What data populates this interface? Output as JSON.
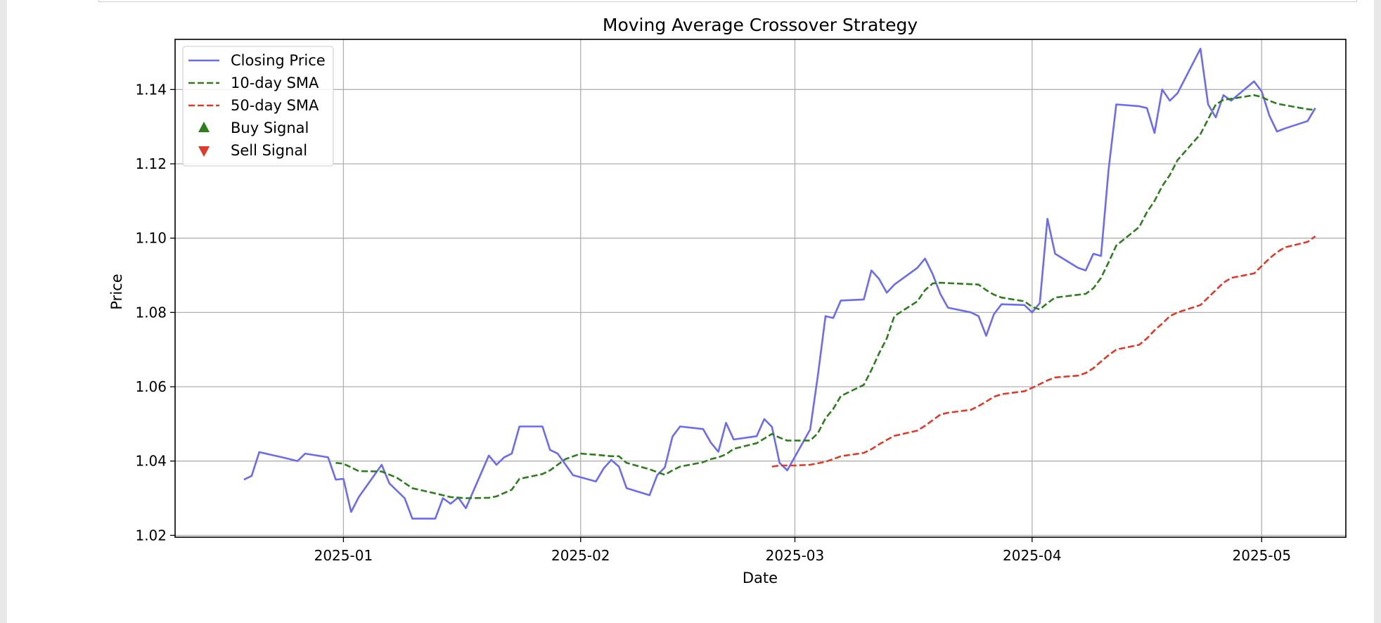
{
  "chart_data": {
    "type": "line",
    "title": "Moving Average Crossover Strategy",
    "xlabel": "Date",
    "ylabel": "Price",
    "grid": true,
    "legend_position": "top-left",
    "xlim": [
      "2024-12-10",
      "2025-05-12"
    ],
    "ylim": [
      1.0195,
      1.1535
    ],
    "x_ticks": [
      "2025-01-01",
      "2025-02-01",
      "2025-03-01",
      "2025-04-01",
      "2025-05-01"
    ],
    "x_tick_labels": [
      "2025-01",
      "2025-02",
      "2025-03",
      "2025-04",
      "2025-05"
    ],
    "y_ticks": [
      1.02,
      1.04,
      1.06,
      1.08,
      1.1,
      1.12,
      1.14
    ],
    "y_tick_labels": [
      "1.02",
      "1.04",
      "1.06",
      "1.08",
      "1.10",
      "1.12",
      "1.14"
    ],
    "legend": [
      {
        "label": "Closing Price",
        "kind": "line",
        "color": "#6b6bf5",
        "dash": "solid"
      },
      {
        "label": "10-day SMA",
        "kind": "line",
        "color": "#2e7d1e",
        "dash": "dashed"
      },
      {
        "label": "50-day SMA",
        "kind": "line",
        "color": "#e03a2a",
        "dash": "dashed"
      },
      {
        "label": "Buy Signal",
        "kind": "marker-up",
        "color": "#2e7d1e"
      },
      {
        "label": "Sell Signal",
        "kind": "marker-down",
        "color": "#e03a2a"
      }
    ],
    "series": [
      {
        "name": "Closing Price",
        "color": "#6b6bf5",
        "dash": "solid",
        "points": [
          [
            "2024-12-19",
            1.035
          ],
          [
            "2024-12-20",
            1.036
          ],
          [
            "2024-12-21",
            1.0424
          ],
          [
            "2024-12-24",
            1.041
          ],
          [
            "2024-12-25",
            1.0405
          ],
          [
            "2024-12-26",
            1.04
          ],
          [
            "2024-12-27",
            1.042
          ],
          [
            "2024-12-30",
            1.041
          ],
          [
            "2024-12-31",
            1.035
          ],
          [
            "2025-01-01",
            1.0352
          ],
          [
            "2025-01-02",
            1.0263
          ],
          [
            "2025-01-03",
            1.0303
          ],
          [
            "2025-01-06",
            1.039
          ],
          [
            "2025-01-07",
            1.034
          ],
          [
            "2025-01-09",
            1.03
          ],
          [
            "2025-01-10",
            1.0245
          ],
          [
            "2025-01-13",
            1.0245
          ],
          [
            "2025-01-14",
            1.03
          ],
          [
            "2025-01-15",
            1.0285
          ],
          [
            "2025-01-16",
            1.0302
          ],
          [
            "2025-01-17",
            1.0273
          ],
          [
            "2025-01-20",
            1.0415
          ],
          [
            "2025-01-21",
            1.039
          ],
          [
            "2025-01-22",
            1.041
          ],
          [
            "2025-01-23",
            1.042
          ],
          [
            "2025-01-24",
            1.0493
          ],
          [
            "2025-01-27",
            1.0493
          ],
          [
            "2025-01-28",
            1.043
          ],
          [
            "2025-01-29",
            1.042
          ],
          [
            "2025-01-31",
            1.0362
          ],
          [
            "2025-02-03",
            1.0345
          ],
          [
            "2025-02-04",
            1.038
          ],
          [
            "2025-02-05",
            1.0403
          ],
          [
            "2025-02-06",
            1.0385
          ],
          [
            "2025-02-07",
            1.0327
          ],
          [
            "2025-02-10",
            1.0308
          ],
          [
            "2025-02-11",
            1.0362
          ],
          [
            "2025-02-12",
            1.0383
          ],
          [
            "2025-02-13",
            1.0466
          ],
          [
            "2025-02-14",
            1.0493
          ],
          [
            "2025-02-17",
            1.0486
          ],
          [
            "2025-02-18",
            1.045
          ],
          [
            "2025-02-19",
            1.0425
          ],
          [
            "2025-02-20",
            1.0503
          ],
          [
            "2025-02-21",
            1.0458
          ],
          [
            "2025-02-24",
            1.0467
          ],
          [
            "2025-02-25",
            1.0513
          ],
          [
            "2025-02-26",
            1.0492
          ],
          [
            "2025-02-27",
            1.0395
          ],
          [
            "2025-02-28",
            1.0375
          ],
          [
            "2025-03-03",
            1.0485
          ],
          [
            "2025-03-04",
            1.063
          ],
          [
            "2025-03-05",
            1.079
          ],
          [
            "2025-03-06",
            1.0785
          ],
          [
            "2025-03-07",
            1.0832
          ],
          [
            "2025-03-10",
            1.0835
          ],
          [
            "2025-03-11",
            1.0913
          ],
          [
            "2025-03-12",
            1.089
          ],
          [
            "2025-03-13",
            1.0853
          ],
          [
            "2025-03-14",
            1.0875
          ],
          [
            "2025-03-17",
            1.092
          ],
          [
            "2025-03-18",
            1.0945
          ],
          [
            "2025-03-19",
            1.0903
          ],
          [
            "2025-03-20",
            1.085
          ],
          [
            "2025-03-21",
            1.0813
          ],
          [
            "2025-03-24",
            1.08
          ],
          [
            "2025-03-25",
            1.079
          ],
          [
            "2025-03-26",
            1.0737
          ],
          [
            "2025-03-27",
            1.0795
          ],
          [
            "2025-03-28",
            1.0822
          ],
          [
            "2025-03-31",
            1.082
          ],
          [
            "2025-04-01",
            1.08
          ],
          [
            "2025-04-02",
            1.0825
          ],
          [
            "2025-04-03",
            1.1052
          ],
          [
            "2025-04-04",
            1.0958
          ],
          [
            "2025-04-07",
            1.092
          ],
          [
            "2025-04-08",
            1.0913
          ],
          [
            "2025-04-09",
            1.0958
          ],
          [
            "2025-04-10",
            1.0952
          ],
          [
            "2025-04-11",
            1.1185
          ],
          [
            "2025-04-12",
            1.136
          ],
          [
            "2025-04-15",
            1.1355
          ],
          [
            "2025-04-16",
            1.135
          ],
          [
            "2025-04-17",
            1.1283
          ],
          [
            "2025-04-18",
            1.14
          ],
          [
            "2025-04-19",
            1.137
          ],
          [
            "2025-04-20",
            1.139
          ],
          [
            "2025-04-23",
            1.151
          ],
          [
            "2025-04-24",
            1.136
          ],
          [
            "2025-04-25",
            1.1325
          ],
          [
            "2025-04-26",
            1.1385
          ],
          [
            "2025-04-27",
            1.137
          ],
          [
            "2025-04-30",
            1.1422
          ],
          [
            "2025-05-01",
            1.1395
          ],
          [
            "2025-05-02",
            1.133
          ],
          [
            "2025-05-03",
            1.1287
          ],
          [
            "2025-05-04",
            1.1295
          ],
          [
            "2025-05-07",
            1.1315
          ],
          [
            "2025-05-08",
            1.135
          ]
        ]
      },
      {
        "name": "10-day SMA",
        "color": "#2e7d1e",
        "dash": "dashed",
        "points": [
          [
            "2024-12-31",
            1.0395
          ],
          [
            "2025-01-01",
            1.0393
          ],
          [
            "2025-01-03",
            1.0373
          ],
          [
            "2025-01-06",
            1.0372
          ],
          [
            "2025-01-08",
            1.0355
          ],
          [
            "2025-01-10",
            1.0327
          ],
          [
            "2025-01-13",
            1.0313
          ],
          [
            "2025-01-15",
            1.0303
          ],
          [
            "2025-01-17",
            1.03
          ],
          [
            "2025-01-20",
            1.0301
          ],
          [
            "2025-01-21",
            1.0305
          ],
          [
            "2025-01-23",
            1.0323
          ],
          [
            "2025-01-24",
            1.0352
          ],
          [
            "2025-01-27",
            1.0365
          ],
          [
            "2025-01-28",
            1.0375
          ],
          [
            "2025-01-30",
            1.0405
          ],
          [
            "2025-02-01",
            1.042
          ],
          [
            "2025-02-03",
            1.0417
          ],
          [
            "2025-02-05",
            1.0413
          ],
          [
            "2025-02-06",
            1.0413
          ],
          [
            "2025-02-07",
            1.0395
          ],
          [
            "2025-02-10",
            1.0378
          ],
          [
            "2025-02-11",
            1.037
          ],
          [
            "2025-02-12",
            1.0363
          ],
          [
            "2025-02-13",
            1.0375
          ],
          [
            "2025-02-14",
            1.0385
          ],
          [
            "2025-02-17",
            1.0397
          ],
          [
            "2025-02-18",
            1.0405
          ],
          [
            "2025-02-19",
            1.041
          ],
          [
            "2025-02-20",
            1.0418
          ],
          [
            "2025-02-21",
            1.0433
          ],
          [
            "2025-02-24",
            1.0448
          ],
          [
            "2025-02-26",
            1.0473
          ],
          [
            "2025-02-27",
            1.0463
          ],
          [
            "2025-02-28",
            1.0455
          ],
          [
            "2025-03-01",
            1.0455
          ],
          [
            "2025-03-03",
            1.0455
          ],
          [
            "2025-03-04",
            1.0475
          ],
          [
            "2025-03-05",
            1.0515
          ],
          [
            "2025-03-06",
            1.054
          ],
          [
            "2025-03-07",
            1.0575
          ],
          [
            "2025-03-10",
            1.0605
          ],
          [
            "2025-03-11",
            1.0645
          ],
          [
            "2025-03-12",
            1.069
          ],
          [
            "2025-03-13",
            1.073
          ],
          [
            "2025-03-14",
            1.079
          ],
          [
            "2025-03-17",
            1.083
          ],
          [
            "2025-03-18",
            1.086
          ],
          [
            "2025-03-19",
            1.0878
          ],
          [
            "2025-03-20",
            1.088
          ],
          [
            "2025-03-25",
            1.0875
          ],
          [
            "2025-03-26",
            1.086
          ],
          [
            "2025-03-27",
            1.0848
          ],
          [
            "2025-03-28",
            1.084
          ],
          [
            "2025-03-31",
            1.083
          ],
          [
            "2025-04-01",
            1.0815
          ],
          [
            "2025-04-02",
            1.0808
          ],
          [
            "2025-04-03",
            1.0825
          ],
          [
            "2025-04-04",
            1.084
          ],
          [
            "2025-04-08",
            1.085
          ],
          [
            "2025-04-09",
            1.0865
          ],
          [
            "2025-04-10",
            1.0893
          ],
          [
            "2025-04-11",
            1.0935
          ],
          [
            "2025-04-12",
            1.098
          ],
          [
            "2025-04-15",
            1.103
          ],
          [
            "2025-04-16",
            1.107
          ],
          [
            "2025-04-17",
            1.11
          ],
          [
            "2025-04-18",
            1.114
          ],
          [
            "2025-04-19",
            1.117
          ],
          [
            "2025-04-20",
            1.121
          ],
          [
            "2025-04-23",
            1.128
          ],
          [
            "2025-04-24",
            1.132
          ],
          [
            "2025-04-25",
            1.136
          ],
          [
            "2025-04-26",
            1.1372
          ],
          [
            "2025-04-27",
            1.1375
          ],
          [
            "2025-04-30",
            1.1385
          ],
          [
            "2025-05-01",
            1.138
          ],
          [
            "2025-05-02",
            1.137
          ],
          [
            "2025-05-03",
            1.1362
          ],
          [
            "2025-05-04",
            1.1358
          ],
          [
            "2025-05-07",
            1.1347
          ],
          [
            "2025-05-08",
            1.1345
          ]
        ]
      },
      {
        "name": "50-day SMA",
        "color": "#e03a2a",
        "dash": "dashed",
        "points": [
          [
            "2025-02-26",
            1.0385
          ],
          [
            "2025-02-27",
            1.0388
          ],
          [
            "2025-02-28",
            1.0388
          ],
          [
            "2025-03-01",
            1.0388
          ],
          [
            "2025-03-03",
            1.039
          ],
          [
            "2025-03-05",
            1.0398
          ],
          [
            "2025-03-06",
            1.0405
          ],
          [
            "2025-03-07",
            1.0413
          ],
          [
            "2025-03-10",
            1.0422
          ],
          [
            "2025-03-11",
            1.0432
          ],
          [
            "2025-03-12",
            1.0445
          ],
          [
            "2025-03-13",
            1.0457
          ],
          [
            "2025-03-14",
            1.0468
          ],
          [
            "2025-03-17",
            1.0482
          ],
          [
            "2025-03-18",
            1.0495
          ],
          [
            "2025-03-19",
            1.051
          ],
          [
            "2025-03-20",
            1.0525
          ],
          [
            "2025-03-21",
            1.053
          ],
          [
            "2025-03-24",
            1.0538
          ],
          [
            "2025-03-25",
            1.0548
          ],
          [
            "2025-03-26",
            1.056
          ],
          [
            "2025-03-27",
            1.0573
          ],
          [
            "2025-03-28",
            1.058
          ],
          [
            "2025-03-31",
            1.0588
          ],
          [
            "2025-04-01",
            1.0597
          ],
          [
            "2025-04-02",
            1.0607
          ],
          [
            "2025-04-03",
            1.0617
          ],
          [
            "2025-04-04",
            1.0625
          ],
          [
            "2025-04-07",
            1.063
          ],
          [
            "2025-04-08",
            1.0637
          ],
          [
            "2025-04-09",
            1.065
          ],
          [
            "2025-04-10",
            1.0668
          ],
          [
            "2025-04-11",
            1.0685
          ],
          [
            "2025-04-12",
            1.07
          ],
          [
            "2025-04-15",
            1.0713
          ],
          [
            "2025-04-16",
            1.073
          ],
          [
            "2025-04-17",
            1.0752
          ],
          [
            "2025-04-18",
            1.077
          ],
          [
            "2025-04-19",
            1.079
          ],
          [
            "2025-04-20",
            1.08
          ],
          [
            "2025-04-23",
            1.082
          ],
          [
            "2025-04-24",
            1.084
          ],
          [
            "2025-04-25",
            1.086
          ],
          [
            "2025-04-26",
            1.088
          ],
          [
            "2025-04-27",
            1.0893
          ],
          [
            "2025-04-30",
            1.0905
          ],
          [
            "2025-05-01",
            1.0925
          ],
          [
            "2025-05-02",
            1.0945
          ],
          [
            "2025-05-03",
            1.0962
          ],
          [
            "2025-05-04",
            1.0975
          ],
          [
            "2025-05-07",
            1.099
          ],
          [
            "2025-05-08",
            1.1005
          ]
        ]
      }
    ]
  }
}
